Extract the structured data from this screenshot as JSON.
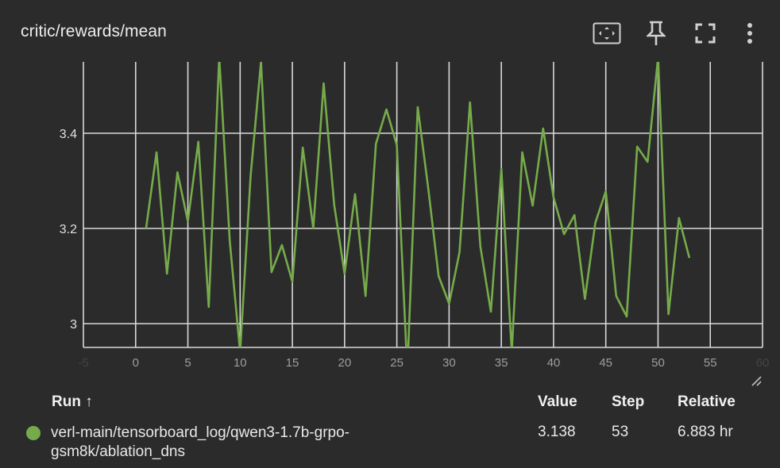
{
  "card": {
    "title": "critic/rewards/mean",
    "icons": [
      "fit-domain-icon",
      "pin-icon",
      "fullscreen-icon",
      "more-vert-icon"
    ]
  },
  "chart_data": {
    "type": "line",
    "title": "critic/rewards/mean",
    "xlim": [
      -5,
      60
    ],
    "ylim": [
      2.95,
      3.55
    ],
    "x_ticks": [
      "-5",
      "0",
      "5",
      "10",
      "15",
      "20",
      "25",
      "30",
      "35",
      "40",
      "45",
      "50",
      "55",
      "60"
    ],
    "y_ticks": [
      "3",
      "3.2",
      "3.4"
    ],
    "grid": true,
    "series": [
      {
        "name": "verl-main/tensorboard_log/qwen3-1.7b-grpo-gsm8k/ablation_dns",
        "color": "#76ab4b",
        "x": [
          1,
          2,
          3,
          4,
          5,
          6,
          7,
          8,
          9,
          10,
          11,
          12,
          13,
          14,
          15,
          16,
          17,
          18,
          19,
          20,
          21,
          22,
          23,
          24,
          25,
          26,
          27,
          28,
          29,
          30,
          31,
          32,
          33,
          34,
          35,
          36,
          37,
          38,
          39,
          40,
          41,
          42,
          43,
          44,
          45,
          46,
          47,
          48,
          49,
          50,
          51,
          52,
          53
        ],
        "y": [
          3.2,
          3.36,
          3.105,
          3.318,
          3.215,
          3.382,
          3.035,
          3.56,
          3.175,
          2.94,
          3.31,
          3.55,
          3.108,
          3.165,
          3.088,
          3.37,
          3.2,
          3.505,
          3.25,
          3.105,
          3.272,
          3.058,
          3.378,
          3.45,
          3.375,
          2.9,
          3.455,
          3.285,
          3.1,
          3.042,
          3.15,
          3.465,
          3.162,
          3.025,
          3.325,
          2.94,
          3.36,
          3.248,
          3.41,
          3.265,
          3.188,
          3.228,
          3.052,
          3.212,
          3.278,
          3.058,
          3.015,
          3.372,
          3.34,
          3.56,
          3.02,
          3.222,
          3.138
        ]
      }
    ]
  },
  "table": {
    "headers": {
      "run": "Run ↑",
      "value": "Value",
      "step": "Step",
      "relative": "Relative"
    },
    "rows": [
      {
        "color": "#76ab4b",
        "run_line1": "verl-main/tensorboard_log/qwen3-1.7b-grpo-",
        "run_line2": "gsm8k/ablation_dns",
        "value": "3.138",
        "step": "53",
        "relative": "6.883 hr"
      }
    ]
  }
}
